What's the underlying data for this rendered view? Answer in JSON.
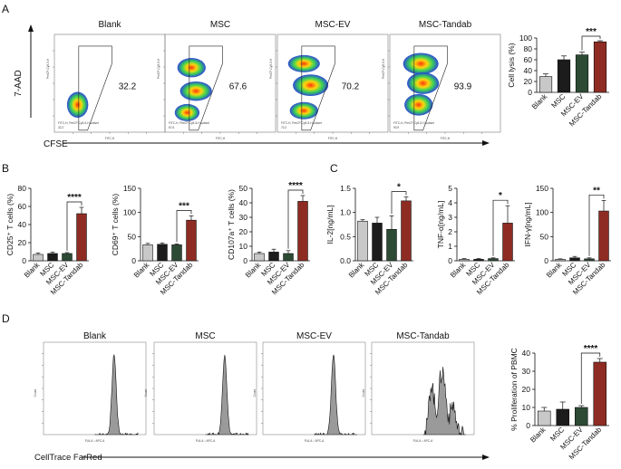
{
  "panel_labels": [
    "A",
    "B",
    "C",
    "D"
  ],
  "panel_a": {
    "y_axis_label": "7-AAD",
    "x_axis_label": "CFSE",
    "plots": [
      {
        "name": "Blank",
        "percent": "32.2",
        "x_tick_label": "FITC-H",
        "y_tick_label": "PerCP-Cy5-5-H",
        "subset": "FITC-H, PerCP-Cy5-5-H subset",
        "subset_value": "32.2"
      },
      {
        "name": "MSC",
        "percent": "67.6",
        "x_tick_label": "FITC-H",
        "y_tick_label": "PerCP-Cy5-5-H",
        "subset": "FITC-H, PerCP-Cy5-5-H subset",
        "subset_value": "67.6"
      },
      {
        "name": "MSC-EV",
        "percent": "70.2",
        "x_tick_label": "FITC-H",
        "y_tick_label": "PerCP-Cy5-5-H",
        "subset": "FITC-H, PerCP-Cy5-5-H subset",
        "subset_value": "70.2"
      },
      {
        "name": "MSC-Tandab",
        "percent": "93.9",
        "x_tick_label": "FITC-H",
        "y_tick_label": "PerCP-Cy5-5-H",
        "subset": "FITC-H, PerCP-Cy5-5-H subset",
        "subset_value": "93.9"
      }
    ]
  },
  "panel_d": {
    "x_axis_label": "CellTrace FarRed",
    "plots": [
      {
        "name": "Blank",
        "x_tick_label": "FL6-A :: APC-A",
        "y_tick_label": "Count"
      },
      {
        "name": "MSC",
        "x_tick_label": "FL6-A :: APC-A",
        "y_tick_label": "Count"
      },
      {
        "name": "MSC-EV",
        "x_tick_label": "FL6-A :: APC-A",
        "y_tick_label": "Count"
      },
      {
        "name": "MSC-Tandab",
        "x_tick_label": "FL6-A :: APC-A",
        "y_tick_label": "Count"
      }
    ]
  },
  "bar_colors": [
    "#c8c8c8",
    "#1c1c1c",
    "#2c4a34",
    "#8e2c24"
  ],
  "chart_data": [
    {
      "id": "cell-lysis",
      "type": "bar",
      "categories": [
        "Blank",
        "MSC",
        "MSC-EV",
        "MSC-Tandab"
      ],
      "values": [
        29,
        60,
        69,
        93
      ],
      "errors": [
        5,
        7,
        5,
        2
      ],
      "ylabel": "Cell lysis (%)",
      "ylim": [
        0,
        100
      ],
      "yticks": [
        0,
        20,
        40,
        60,
        80,
        100
      ],
      "sig": {
        "from": 2,
        "to": 3,
        "label": "***"
      }
    },
    {
      "id": "cd25",
      "type": "bar",
      "categories": [
        "Blank",
        "MSC",
        "MSC-EV",
        "MSC-Tandab"
      ],
      "values": [
        7,
        8,
        8,
        52
      ],
      "errors": [
        1.5,
        1.5,
        1,
        7
      ],
      "ylabel": "CD25⁺ T cells (%)",
      "ylim": [
        0,
        80
      ],
      "yticks": [
        0,
        20,
        40,
        60,
        80
      ],
      "sig": {
        "from": 2,
        "to": 3,
        "label": "****"
      }
    },
    {
      "id": "cd69",
      "type": "bar",
      "categories": [
        "Blank",
        "MSC",
        "MSC-EV",
        "MSC-Tandab"
      ],
      "values": [
        33,
        34,
        33,
        84
      ],
      "errors": [
        3,
        3,
        2,
        9
      ],
      "ylabel": "CD69⁺ T cells (%)",
      "ylim": [
        0,
        150
      ],
      "yticks": [
        0,
        50,
        100,
        150
      ],
      "sig": {
        "from": 2,
        "to": 3,
        "label": "***"
      }
    },
    {
      "id": "cd107a",
      "type": "bar",
      "categories": [
        "Blank",
        "MSC",
        "MSC-EV",
        "MSC-Tandab"
      ],
      "values": [
        5,
        6,
        5,
        41
      ],
      "errors": [
        1,
        2,
        2,
        4
      ],
      "ylabel": "CD107a⁺ T cells (%)",
      "ylim": [
        0,
        50
      ],
      "yticks": [
        0,
        10,
        20,
        30,
        40,
        50
      ],
      "sig": {
        "from": 2,
        "to": 3,
        "label": "****"
      }
    },
    {
      "id": "il2",
      "type": "bar",
      "categories": [
        "Blank",
        "MSC",
        "MSC-EV",
        "MSC-Tandab"
      ],
      "values": [
        0.82,
        0.78,
        0.65,
        1.24
      ],
      "errors": [
        0.03,
        0.12,
        0.28,
        0.08
      ],
      "ylabel": "IL-2[ng/mL]",
      "ylim": [
        0,
        1.5
      ],
      "yticks": [
        0.0,
        0.5,
        1.0,
        1.5
      ],
      "sig": {
        "from": 2,
        "to": 3,
        "label": "*"
      }
    },
    {
      "id": "tnf",
      "type": "bar",
      "categories": [
        "Blank",
        "MSC",
        "MSC-EV",
        "MSC-Tandab"
      ],
      "values": [
        0.1,
        0.1,
        0.15,
        2.6
      ],
      "errors": [
        0.05,
        0.05,
        0.05,
        1.2
      ],
      "ylabel": "TNF-α[ng/mL]",
      "ylim": [
        0,
        5
      ],
      "yticks": [
        0,
        1,
        2,
        3,
        4,
        5
      ],
      "sig": {
        "from": 2,
        "to": 3,
        "label": "*"
      }
    },
    {
      "id": "ifn",
      "type": "bar",
      "categories": [
        "Blank",
        "MSC",
        "MSC-EV",
        "MSC-Tandab"
      ],
      "values": [
        3,
        6,
        4,
        103
      ],
      "errors": [
        1,
        3,
        2,
        22
      ],
      "ylabel": "IFN-γ[ng/mL]",
      "ylim": [
        0,
        150
      ],
      "yticks": [
        0,
        50,
        100,
        150
      ],
      "sig": {
        "from": 2,
        "to": 3,
        "label": "**"
      }
    },
    {
      "id": "prolif",
      "type": "bar",
      "categories": [
        "Blank",
        "MSC",
        "MSC-EV",
        "MSC-Tandab"
      ],
      "values": [
        8,
        9,
        10,
        35
      ],
      "errors": [
        2,
        4,
        1,
        2
      ],
      "ylabel": "% Proliferation of PBMC",
      "ylim": [
        0,
        40
      ],
      "yticks": [
        0,
        10,
        20,
        30,
        40
      ],
      "sig": {
        "from": 2,
        "to": 3,
        "label": "****"
      }
    }
  ]
}
